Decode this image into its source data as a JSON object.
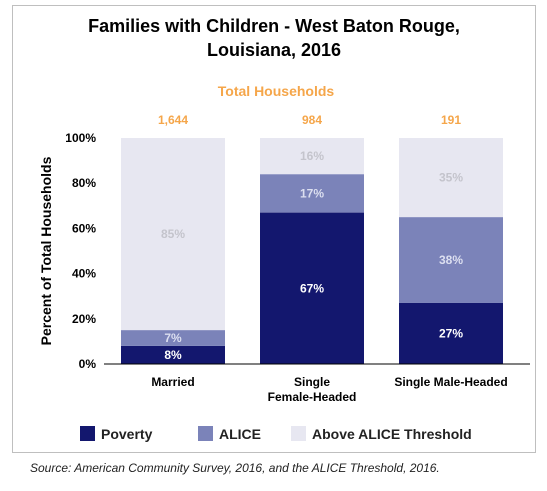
{
  "title_lines": [
    "Families with Children - West Baton Rouge,",
    "Louisiana, 2016"
  ],
  "source": "Source: American Community Survey, 2016, and the ALICE Threshold, 2016.",
  "colors": {
    "poverty": "#13176e",
    "alice": "#7b83b9",
    "above": "#e7e7f1",
    "header": "#f5a64a",
    "axis": "#000000"
  },
  "chart_data": {
    "type": "bar",
    "stacked": true,
    "totals_header": "Total Households",
    "ylabel": "Percent of Total Households",
    "ylim": [
      0,
      100
    ],
    "yticks": [
      "0%",
      "20%",
      "40%",
      "60%",
      "80%",
      "100%"
    ],
    "categories": [
      {
        "lines": [
          "Married"
        ],
        "total": "1,644"
      },
      {
        "lines": [
          "Single",
          "Female-Headed"
        ],
        "total": "984"
      },
      {
        "lines": [
          "Single Male-Headed"
        ],
        "total": "191"
      }
    ],
    "series": [
      {
        "name": "Poverty",
        "color_key": "poverty",
        "values": [
          8,
          67,
          27
        ],
        "labels": [
          "8%",
          "67%",
          "27%"
        ]
      },
      {
        "name": "ALICE",
        "color_key": "alice",
        "values": [
          7,
          17,
          38
        ],
        "labels": [
          "7%",
          "17%",
          "38%"
        ]
      },
      {
        "name": "Above ALICE Threshold",
        "color_key": "above",
        "values": [
          85,
          16,
          35
        ],
        "labels": [
          "85%",
          "16%",
          "35%"
        ]
      }
    ],
    "legend_position": "bottom"
  }
}
